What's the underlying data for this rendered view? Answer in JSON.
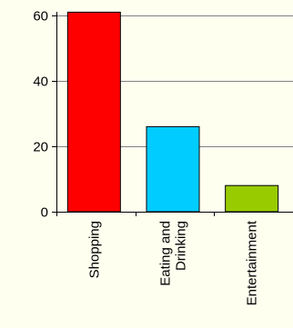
{
  "chart_data": {
    "type": "bar",
    "categories": [
      "Shopping",
      "Eating and Drinking",
      "Entertainment"
    ],
    "category_label_lines": [
      [
        "Shopping"
      ],
      [
        "Eating and",
        "Drinking"
      ],
      [
        "Entertainment"
      ]
    ],
    "values": [
      61,
      26,
      8
    ],
    "bar_colors": [
      "#ff0000",
      "#00ccff",
      "#99cc00"
    ],
    "yticks": [
      0,
      20,
      40,
      60
    ],
    "ylim": [
      0,
      60
    ],
    "grid": true,
    "gridline_color": "#808080",
    "background_color": "#fffff0",
    "bar_edge_color": "#000000",
    "title": "",
    "xlabel": "",
    "ylabel": "",
    "legend": "none"
  }
}
